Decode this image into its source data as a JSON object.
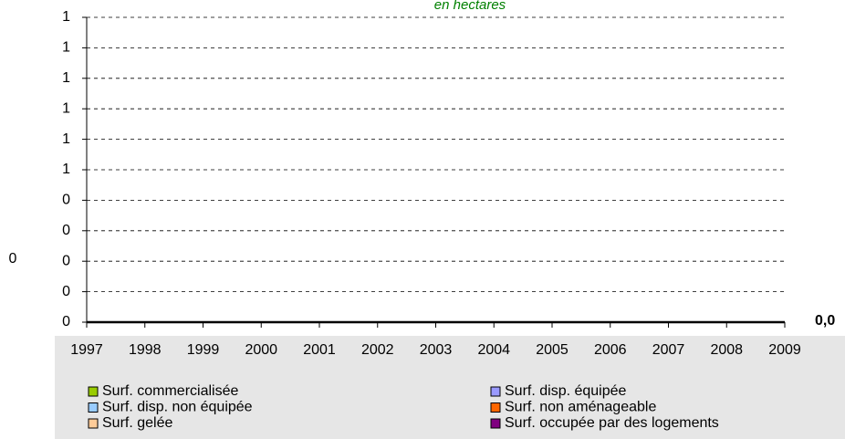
{
  "chart_data": {
    "type": "area",
    "stacked": true,
    "title": "en hectares",
    "ylabel": "0",
    "end_label": "0,0",
    "categories": [
      "1997",
      "1998",
      "1999",
      "2000",
      "2001",
      "2002",
      "2003",
      "2004",
      "2005",
      "2006",
      "2007",
      "2008",
      "2009"
    ],
    "series": [
      {
        "name": "Surf. commercialisée",
        "color": "#99cc00",
        "values": [
          0,
          0,
          0,
          0,
          0,
          0,
          0,
          0,
          0,
          0,
          0,
          0,
          0
        ]
      },
      {
        "name": "Surf. disp. équipée",
        "color": "#9999ff",
        "values": [
          0,
          0,
          0,
          0,
          0,
          0,
          0,
          0,
          0,
          0,
          0,
          0,
          0
        ]
      },
      {
        "name": "Surf. disp. non équipée",
        "color": "#99ccff",
        "values": [
          0,
          0,
          0,
          0,
          0,
          0,
          0,
          0,
          0,
          0,
          0,
          0,
          0
        ]
      },
      {
        "name": "Surf. non aménageable",
        "color": "#ff6600",
        "values": [
          0,
          0,
          0,
          0,
          0,
          0,
          0,
          0,
          0,
          0,
          0,
          0,
          0
        ]
      },
      {
        "name": "Surf. gelée",
        "color": "#ffcc99",
        "values": [
          0,
          0,
          0,
          0,
          0,
          0,
          0,
          0,
          0,
          0,
          0,
          0,
          0
        ]
      },
      {
        "name": "Surf. occupée par des logements",
        "color": "#800080",
        "values": [
          0,
          0,
          0,
          0,
          0,
          0,
          0,
          0,
          0,
          0,
          0,
          0,
          0
        ]
      }
    ],
    "ylim": [
      0,
      1
    ],
    "yticks": [
      {
        "value": 0,
        "label": "0"
      },
      {
        "value": 0.1,
        "label": "0"
      },
      {
        "value": 0.2,
        "label": "0"
      },
      {
        "value": 0.3,
        "label": "0"
      },
      {
        "value": 0.4,
        "label": "0"
      },
      {
        "value": 0.5,
        "label": "1"
      },
      {
        "value": 0.6,
        "label": "1"
      },
      {
        "value": 0.7,
        "label": "1"
      },
      {
        "value": 0.8,
        "label": "1"
      },
      {
        "value": 0.9,
        "label": "1"
      },
      {
        "value": 1,
        "label": "1"
      }
    ],
    "grid": true
  }
}
